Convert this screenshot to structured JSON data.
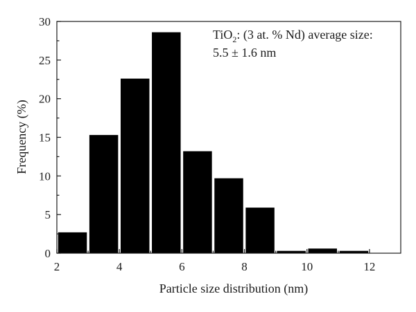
{
  "chart_data": {
    "type": "bar",
    "title": "",
    "xlabel": "Particle size distribution (nm)",
    "ylabel": "Frequency (%)",
    "xlim": [
      2,
      13
    ],
    "ylim": [
      0,
      30
    ],
    "xticks": [
      2,
      4,
      6,
      8,
      10,
      12
    ],
    "yticks": [
      0,
      5,
      10,
      15,
      20,
      25,
      30
    ],
    "bin_width": 1,
    "bars": [
      {
        "x_center": 2.5,
        "value": 2.7
      },
      {
        "x_center": 3.5,
        "value": 15.3
      },
      {
        "x_center": 4.5,
        "value": 22.6
      },
      {
        "x_center": 5.5,
        "value": 28.6
      },
      {
        "x_center": 6.5,
        "value": 13.2
      },
      {
        "x_center": 7.5,
        "value": 9.7
      },
      {
        "x_center": 8.5,
        "value": 5.9
      },
      {
        "x_center": 9.5,
        "value": 0.3
      },
      {
        "x_center": 10.5,
        "value": 0.6
      },
      {
        "x_center": 11.5,
        "value": 0.3
      }
    ],
    "annotation": {
      "line1_main": "TiO",
      "line1_sub": "2",
      "line1_rest": ": (3 at. % Nd) average size:",
      "line2": "5.5 ± 1.6 nm"
    },
    "grid": false,
    "legend": "none",
    "bar_color": "#000000"
  }
}
